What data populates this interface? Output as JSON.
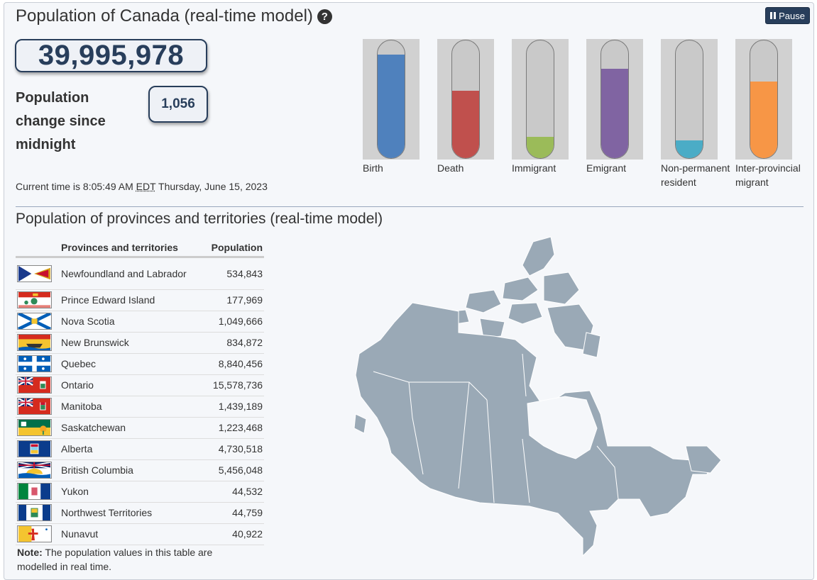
{
  "header": {
    "title": "Population of Canada (real-time model)",
    "pause_label": "Pause"
  },
  "population": {
    "total": "39,995,978",
    "change_label": "Population change since midnight",
    "change_value": "1,056",
    "current_time_prefix": "Current time is 8:05:49 AM",
    "time_zone": "EDT",
    "current_date": "Thursday, June 15, 2023"
  },
  "gauges": [
    {
      "label": "Birth",
      "color": "#4f81bd",
      "level_percent": 88
    },
    {
      "label": "Death",
      "color": "#c0504d",
      "level_percent": 57
    },
    {
      "label": "Immigrant",
      "color": "#9bbb59",
      "level_percent": 18
    },
    {
      "label": "Emigrant",
      "color": "#8064a2",
      "level_percent": 76
    },
    {
      "label": "Non-permanent resident",
      "color": "#4bacc6",
      "level_percent": 15
    },
    {
      "label": "Inter-provincial migrant",
      "color": "#f79646",
      "level_percent": 65
    }
  ],
  "provinces": {
    "title": "Population of provinces and territories (real-time model)",
    "col_name": "Provinces and territories",
    "col_population": "Population",
    "rows": [
      {
        "name": "Newfoundland and Labrador",
        "population": "534,843",
        "flag": "newfoundland-flag-icon"
      },
      {
        "name": "Prince Edward Island",
        "population": "177,969",
        "flag": "pei-flag-icon"
      },
      {
        "name": "Nova Scotia",
        "population": "1,049,666",
        "flag": "nova-scotia-flag-icon"
      },
      {
        "name": "New Brunswick",
        "population": "834,872",
        "flag": "new-brunswick-flag-icon"
      },
      {
        "name": "Quebec",
        "population": "8,840,456",
        "flag": "quebec-flag-icon"
      },
      {
        "name": "Ontario",
        "population": "15,578,736",
        "flag": "ontario-flag-icon"
      },
      {
        "name": "Manitoba",
        "population": "1,439,189",
        "flag": "manitoba-flag-icon"
      },
      {
        "name": "Saskatchewan",
        "population": "1,223,468",
        "flag": "saskatchewan-flag-icon"
      },
      {
        "name": "Alberta",
        "population": "4,730,518",
        "flag": "alberta-flag-icon"
      },
      {
        "name": "British Columbia",
        "population": "5,456,048",
        "flag": "british-columbia-flag-icon"
      },
      {
        "name": "Yukon",
        "population": "44,532",
        "flag": "yukon-flag-icon"
      },
      {
        "name": "Northwest Territories",
        "population": "44,759",
        "flag": "northwest-territories-flag-icon"
      },
      {
        "name": "Nunavut",
        "population": "40,922",
        "flag": "nunavut-flag-icon"
      }
    ],
    "note_label": "Note:",
    "note_text": "The population values in this table are modelled in real time."
  },
  "map": {
    "icon": "canada-map-icon",
    "fill_color": "#9aa9b6"
  }
}
